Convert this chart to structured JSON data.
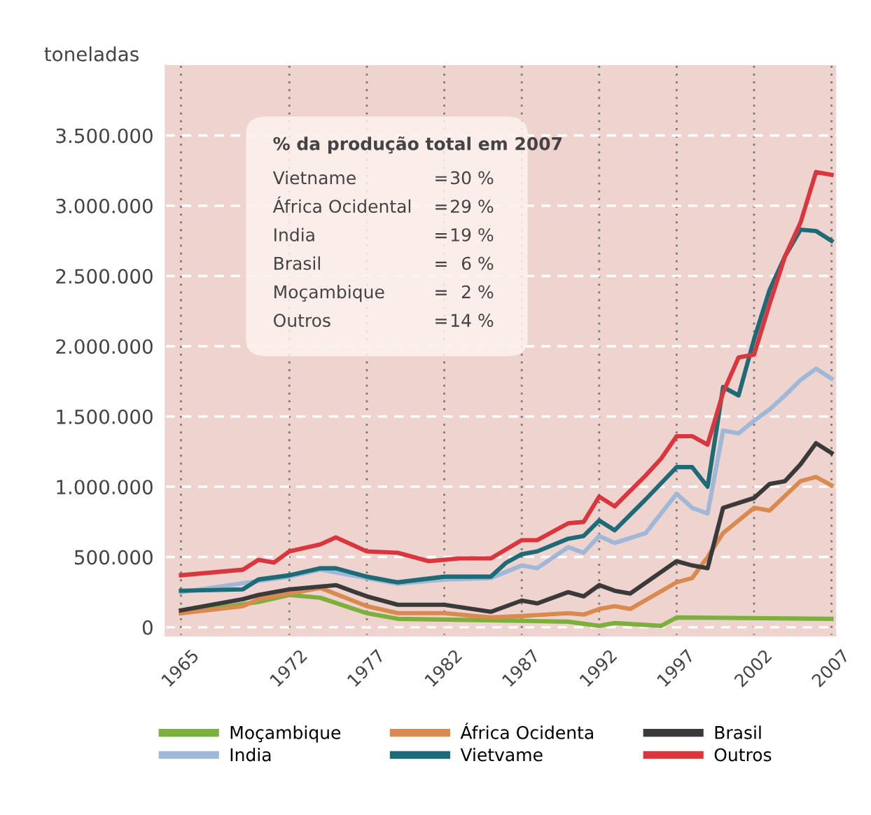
{
  "chart_data": {
    "type": "line",
    "ylabel": "toneladas",
    "xlim": [
      1964,
      2007.3
    ],
    "xticks": [
      1965,
      1972,
      1977,
      1982,
      1987,
      1992,
      1997,
      2002,
      2007
    ],
    "ylim": [
      -60000,
      4000000
    ],
    "yticks": [
      0,
      {
        "value": 500000,
        "label": "500.000"
      },
      {
        "value": 1000000,
        "label": "1.000.000"
      },
      {
        "value": 1500000,
        "label": "1.500.000"
      },
      {
        "value": 2000000,
        "label": "2.000.000"
      },
      {
        "value": 2500000,
        "label": "2.500.000"
      },
      {
        "value": 3000000,
        "label": "3.000.000"
      },
      {
        "value": 3500000,
        "label": "3.500.000"
      }
    ],
    "grid": true,
    "legend": "bottom",
    "marker": "none",
    "line_style": "solid",
    "series": [
      {
        "name": "Moçambique",
        "color": "#7bb03c",
        "x": [
          1965,
          1970,
          1972,
          1974,
          1977,
          1979,
          1985,
          1990,
          1992,
          1993,
          1996,
          1997,
          2007
        ],
        "values": [
          100000,
          180000,
          230000,
          210000,
          100000,
          60000,
          50000,
          40000,
          10000,
          30000,
          10000,
          70000,
          60000
        ]
      },
      {
        "name": "India",
        "color": "#9fb8d8",
        "x": [
          1965,
          1970,
          1972,
          1974,
          1977,
          1979,
          1982,
          1985,
          1987,
          1988,
          1990,
          1991,
          1992,
          1993,
          1995,
          1997,
          1998,
          1999,
          2000,
          2001,
          2002,
          2003,
          2004,
          2005,
          2006,
          2007
        ],
        "values": [
          250000,
          330000,
          360000,
          410000,
          350000,
          310000,
          340000,
          350000,
          440000,
          420000,
          570000,
          530000,
          650000,
          600000,
          670000,
          950000,
          850000,
          810000,
          1400000,
          1380000,
          1470000,
          1550000,
          1650000,
          1760000,
          1840000,
          1770000
        ]
      },
      {
        "name": "África Ocidenta",
        "color": "#d98a4e",
        "x": [
          1965,
          1969,
          1970,
          1972,
          1974,
          1977,
          1979,
          1982,
          1985,
          1987,
          1990,
          1991,
          1992,
          1993,
          1994,
          1997,
          1998,
          1999,
          2000,
          2002,
          2003,
          2005,
          2006,
          2007
        ],
        "values": [
          100000,
          150000,
          200000,
          240000,
          280000,
          150000,
          100000,
          100000,
          70000,
          80000,
          100000,
          90000,
          130000,
          150000,
          130000,
          320000,
          350000,
          500000,
          670000,
          850000,
          830000,
          1040000,
          1070000,
          1010000
        ]
      },
      {
        "name": "Vietvame",
        "color": "#1e6b78",
        "x": [
          1965,
          1969,
          1970,
          1972,
          1974,
          1975,
          1977,
          1979,
          1982,
          1985,
          1986,
          1987,
          1988,
          1990,
          1991,
          1992,
          1993,
          1995,
          1997,
          1998,
          1999,
          2000,
          2001,
          2002,
          2003,
          2004,
          2005,
          2006,
          2007
        ],
        "values": [
          260000,
          270000,
          340000,
          370000,
          420000,
          420000,
          360000,
          320000,
          360000,
          360000,
          460000,
          520000,
          540000,
          630000,
          650000,
          760000,
          690000,
          910000,
          1140000,
          1140000,
          1000000,
          1710000,
          1650000,
          2050000,
          2400000,
          2640000,
          2830000,
          2820000,
          2750000
        ]
      },
      {
        "name": "Brasil",
        "color": "#3a3a3a",
        "x": [
          1965,
          1969,
          1970,
          1972,
          1974,
          1975,
          1977,
          1979,
          1982,
          1985,
          1987,
          1988,
          1990,
          1991,
          1992,
          1993,
          1994,
          1997,
          1998,
          1999,
          2000,
          2002,
          2003,
          2004,
          2005,
          2006,
          2007
        ],
        "values": [
          120000,
          200000,
          230000,
          270000,
          290000,
          300000,
          220000,
          160000,
          160000,
          110000,
          190000,
          170000,
          250000,
          220000,
          300000,
          260000,
          240000,
          470000,
          440000,
          420000,
          850000,
          920000,
          1020000,
          1040000,
          1160000,
          1310000,
          1240000
        ]
      },
      {
        "name": "Outros",
        "color": "#d9363e",
        "x": [
          1965,
          1969,
          1970,
          1971,
          1972,
          1974,
          1975,
          1977,
          1979,
          1981,
          1983,
          1985,
          1987,
          1988,
          1990,
          1991,
          1992,
          1993,
          1995,
          1996,
          1997,
          1998,
          1999,
          2000,
          2001,
          2002,
          2003,
          2004,
          2005,
          2006,
          2007
        ],
        "values": [
          370000,
          410000,
          480000,
          460000,
          540000,
          590000,
          640000,
          540000,
          530000,
          470000,
          490000,
          490000,
          620000,
          620000,
          740000,
          750000,
          930000,
          860000,
          1080000,
          1200000,
          1360000,
          1360000,
          1300000,
          1670000,
          1920000,
          1940000,
          2300000,
          2640000,
          2880000,
          3240000,
          3220000
        ]
      }
    ],
    "annotations": [
      "% da produção total em 2007",
      "Vietname = 30 %",
      "África Ocidental = 29 %",
      "India = 19 %",
      "Brasil = 6 %",
      "Moçambique = 2 %",
      "Outros = 14 %"
    ]
  }
}
